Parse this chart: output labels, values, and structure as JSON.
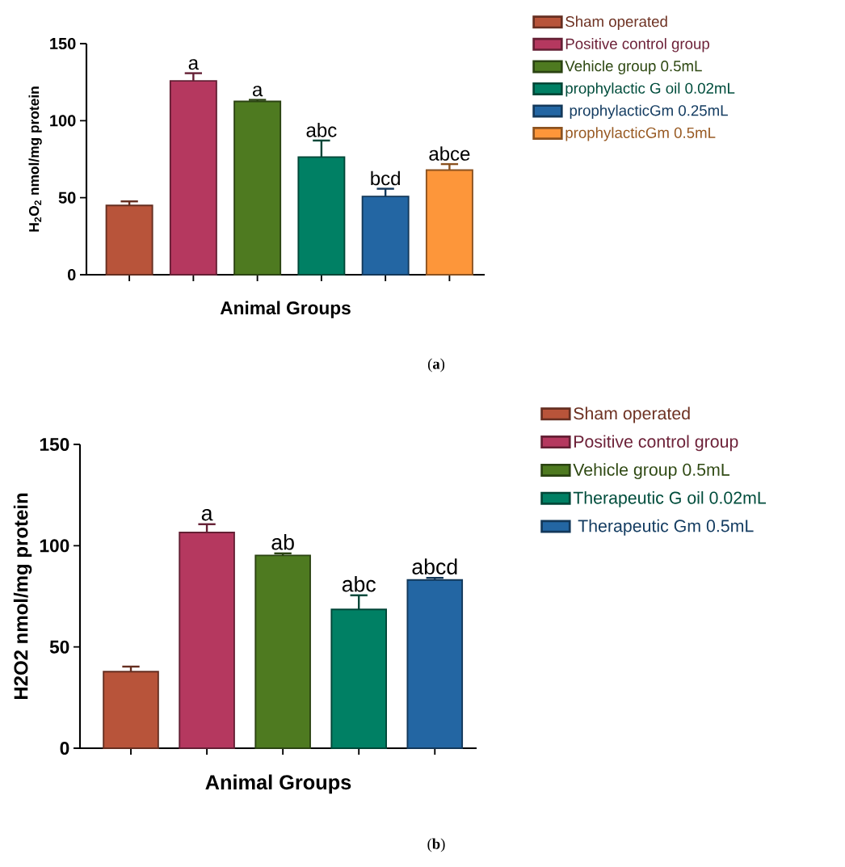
{
  "chart_data": [
    {
      "type": "bar",
      "xlabel": "Animal Groups",
      "ylabel": "H$_{2}$O$_{2}$ nmol/mg protein",
      "annotations": [
        "(**a**)"
      ],
      "categories": [
        null,
        null,
        null,
        null,
        null,
        null
      ],
      "series": [
        {
          "name": "Sham operated",
          "color": "#b8543a",
          "values": [
            45,
            null,
            null,
            null,
            null,
            null
          ],
          "errors": [
            2.6,
            null,
            null,
            null,
            null,
            null
          ]
        },
        {
          "name": "Positive control group",
          "color": "#b5385f",
          "values": [
            null,
            125.8,
            null,
            null,
            null,
            null
          ],
          "errors": [
            null,
            5,
            null,
            null,
            null,
            null
          ],
          "value_labels": [
            null,
            "a",
            null,
            null,
            null,
            null
          ]
        },
        {
          "name": "Vehicle group 0.5mL",
          "color": "#4e7a20",
          "values": [
            null,
            null,
            112.5,
            null,
            null,
            null
          ],
          "errors": [
            null,
            null,
            1,
            null,
            null,
            null
          ],
          "value_labels": [
            null,
            null,
            "a",
            null,
            null,
            null
          ]
        },
        {
          "name": "prophylactic G oil 0.02mL",
          "color": "#008064",
          "values": [
            null,
            null,
            null,
            76.4,
            null,
            null
          ],
          "errors": [
            null,
            null,
            null,
            10.7,
            null,
            null
          ],
          "value_labels": [
            null,
            null,
            null,
            "abc",
            null,
            null
          ]
        },
        {
          "name": " prophylacticGm 0.25mL",
          "color": "#2366a3",
          "values": [
            null,
            null,
            null,
            null,
            50.8,
            null
          ],
          "errors": [
            null,
            null,
            null,
            null,
            5,
            null
          ],
          "value_labels": [
            null,
            null,
            null,
            null,
            "bcd",
            null
          ]
        },
        {
          "name": "prophylacticGm 0.5mL",
          "color": "#fd963a",
          "values": [
            null,
            null,
            null,
            null,
            null,
            67.9
          ],
          "errors": [
            null,
            null,
            null,
            null,
            null,
            3.9
          ],
          "value_labels": [
            null,
            null,
            null,
            null,
            null,
            "abce"
          ]
        }
      ],
      "ylim": [
        0,
        150
      ],
      "yticks": [
        0,
        50,
        100,
        150
      ],
      "legend": "right"
    },
    {
      "type": "bar",
      "xlabel": "Animal Groups",
      "ylabel": "H2O2 nmol/mg protein",
      "annotations": [
        "(**b**)"
      ],
      "categories": [
        null,
        null,
        null,
        null,
        null
      ],
      "series": [
        {
          "name": "Sham operated",
          "color": "#b8543a",
          "values": [
            37.8,
            null,
            null,
            null,
            null
          ],
          "errors": [
            2.5,
            null,
            null,
            null,
            null
          ]
        },
        {
          "name": "Positive control group",
          "color": "#b5385f",
          "values": [
            null,
            106.5,
            null,
            null,
            null
          ],
          "errors": [
            null,
            4.1,
            null,
            null,
            null
          ],
          "value_labels": [
            null,
            "a",
            null,
            null,
            null
          ]
        },
        {
          "name": "Vehicle group 0.5mL",
          "color": "#4e7a20",
          "values": [
            null,
            null,
            95.2,
            null,
            null
          ],
          "errors": [
            null,
            null,
            1,
            null,
            null
          ],
          "value_labels": [
            null,
            null,
            "ab",
            null,
            null
          ]
        },
        {
          "name": "Therapeutic G oil 0.02mL",
          "color": "#008064",
          "values": [
            null,
            null,
            null,
            68.5,
            null
          ],
          "errors": [
            null,
            null,
            null,
            7,
            null
          ],
          "value_labels": [
            null,
            null,
            null,
            "abc",
            null
          ]
        },
        {
          "name": " Therapeutic Gm 0.5mL",
          "color": "#2366a3",
          "values": [
            null,
            null,
            null,
            null,
            83.1
          ],
          "errors": [
            null,
            null,
            null,
            null,
            1
          ],
          "value_labels": [
            null,
            null,
            null,
            null,
            "abcd"
          ]
        }
      ],
      "ylim": [
        0,
        150
      ],
      "yticks": [
        0,
        50,
        100,
        150
      ],
      "legend": "right"
    }
  ]
}
